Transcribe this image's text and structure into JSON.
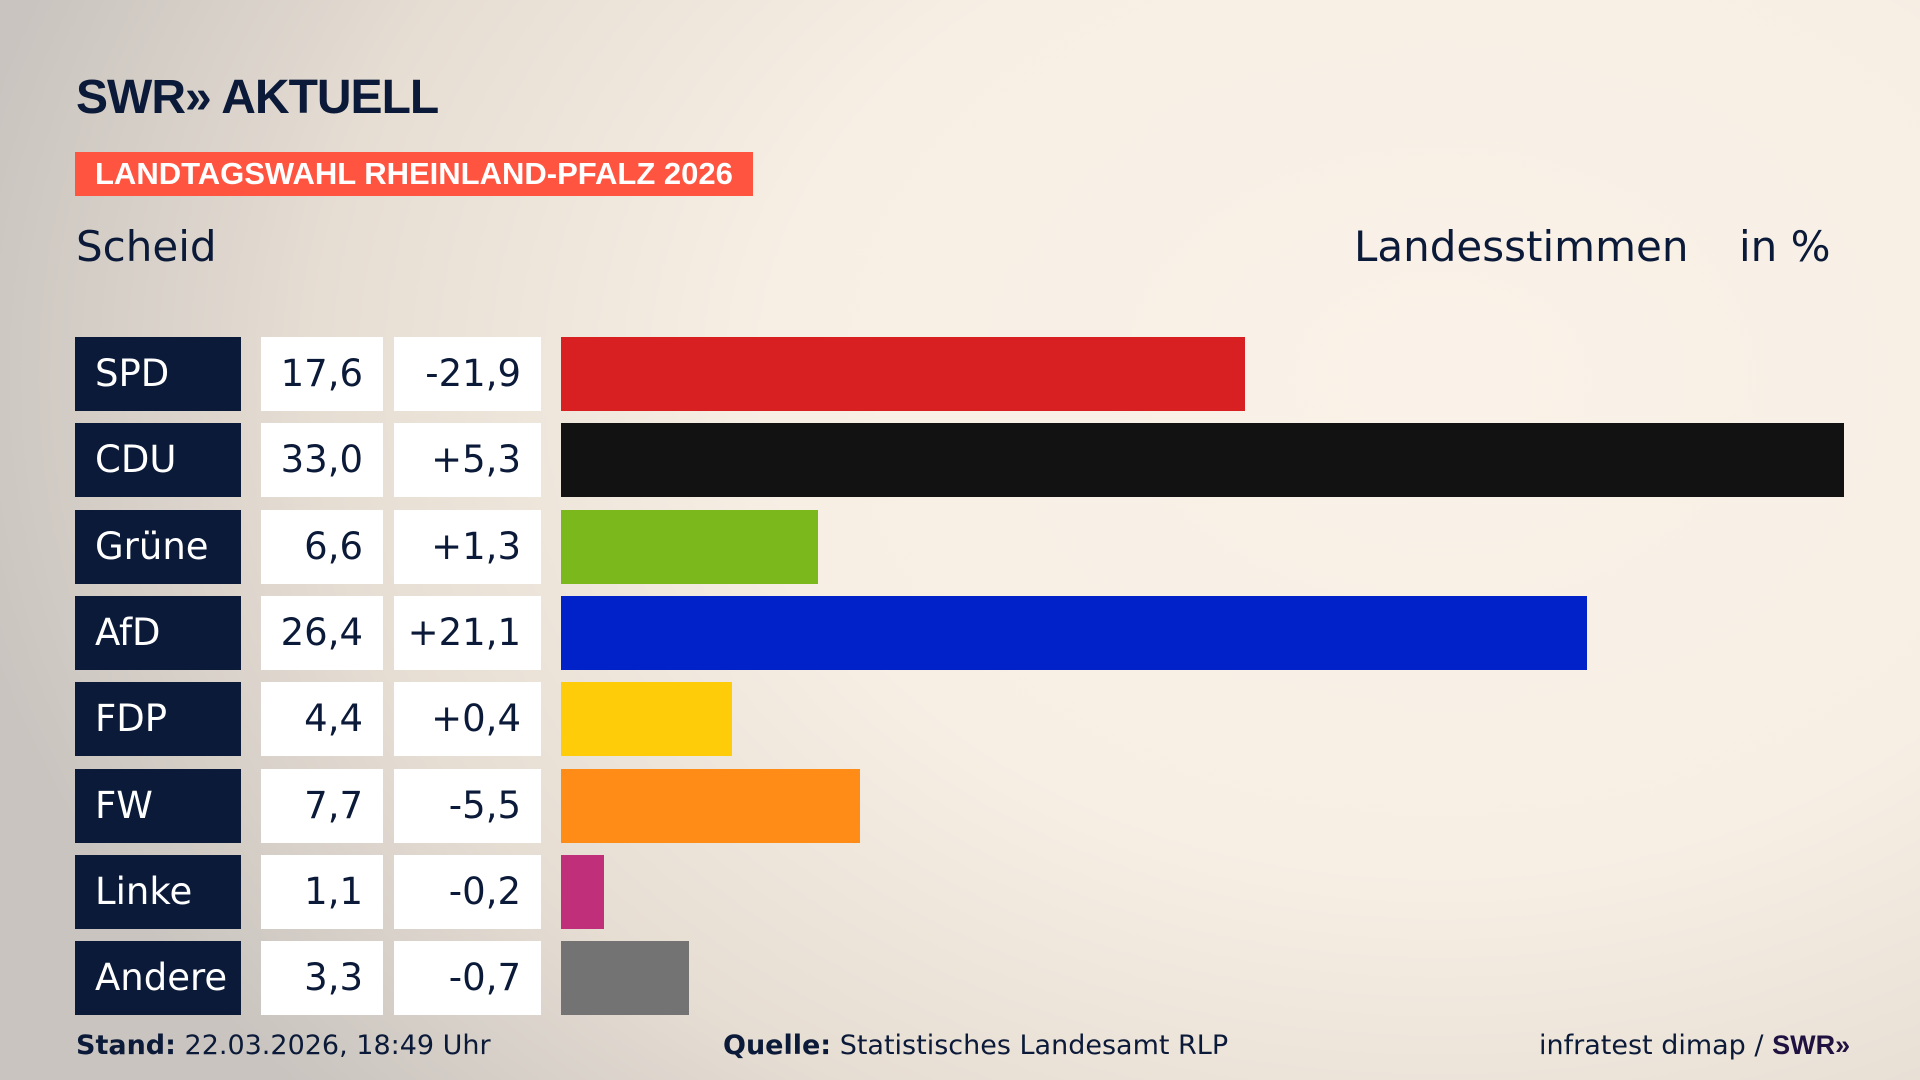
{
  "header": {
    "logo": "SWR» AKTUELL",
    "banner": "LANDTAGSWAHL RHEINLAND-PFALZ 2026",
    "place": "Scheid",
    "measure": "Landesstimmen",
    "unit": "in %"
  },
  "colors": {
    "banner": "#ff5540",
    "label_bg": "#0b1a38"
  },
  "chart_data": {
    "type": "bar",
    "orientation": "horizontal",
    "categories": [
      "SPD",
      "CDU",
      "Grüne",
      "AfD",
      "FDP",
      "FW",
      "Linke",
      "Andere"
    ],
    "values": [
      17.6,
      33.0,
      6.6,
      26.4,
      4.4,
      7.7,
      1.1,
      3.3
    ],
    "value_labels": [
      "17,6",
      "33,0",
      "6,6",
      "26,4",
      "4,4",
      "7,7",
      "1,1",
      "3,3"
    ],
    "diff_labels": [
      "-21,9",
      "+5,3",
      "+1,3",
      "+21,1",
      "+0,4",
      "-5,5",
      "-0,2",
      "-0,7"
    ],
    "diffs": [
      -21.9,
      5.3,
      1.3,
      21.1,
      0.4,
      -5.5,
      -0.2,
      -0.7
    ],
    "colors": [
      "#d81f21",
      "#121212",
      "#7ab81b",
      "#0022c8",
      "#ffcc09",
      "#ff8c17",
      "#c0307a",
      "#737373"
    ],
    "unit": "in %"
  },
  "footer": {
    "stand_label": "Stand:",
    "stand_value": "22.03.2026, 18:49 Uhr",
    "source_label": "Quelle:",
    "source_value": "Statistisches Landesamt RLP",
    "credit": "infratest dimap /",
    "credit_logo": "SWR»"
  }
}
